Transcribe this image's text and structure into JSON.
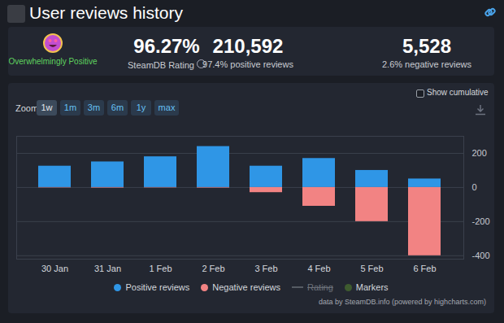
{
  "page": {
    "title": "User reviews history",
    "summary": {
      "rating_label": "Overwhelmingly Positive",
      "rating": "96.27%",
      "rating_caption": "SteamDB Rating",
      "positive_total": "210,592",
      "positive_caption": "97.4% positive reviews",
      "negative_total": "5,528",
      "negative_caption": "2.6% negative reviews"
    },
    "zoom": {
      "label": "Zoom",
      "options": [
        "1w",
        "1m",
        "3m",
        "6m",
        "1y",
        "max"
      ],
      "selected": "1w"
    },
    "checkbox": "Show cumulative",
    "legend_extra": [
      {
        "name": "Rating",
        "color": "#8a8f98",
        "hidden": true
      },
      {
        "name": "Markers",
        "color": "#3e5b2f"
      }
    ],
    "credits": "data by SteamDB.info (powered by highcharts.com)"
  },
  "chart_data": {
    "type": "bar",
    "categories": [
      "30 Jan",
      "31 Jan",
      "1 Feb",
      "2 Feb",
      "3 Feb",
      "4 Feb",
      "5 Feb",
      "6 Feb"
    ],
    "series": [
      {
        "name": "Positive reviews",
        "color": "#2f96e6",
        "values": [
          125,
          150,
          180,
          240,
          125,
          170,
          100,
          50
        ]
      },
      {
        "name": "Negative reviews",
        "color": "#f28383",
        "values": [
          -2,
          -3,
          -2,
          -3,
          -30,
          -110,
          -200,
          -400
        ]
      }
    ],
    "ylim": [
      -420,
      300
    ],
    "yticks": [
      -400,
      -200,
      0,
      200
    ],
    "grid": true,
    "stacked": true,
    "legend": "bottom"
  }
}
